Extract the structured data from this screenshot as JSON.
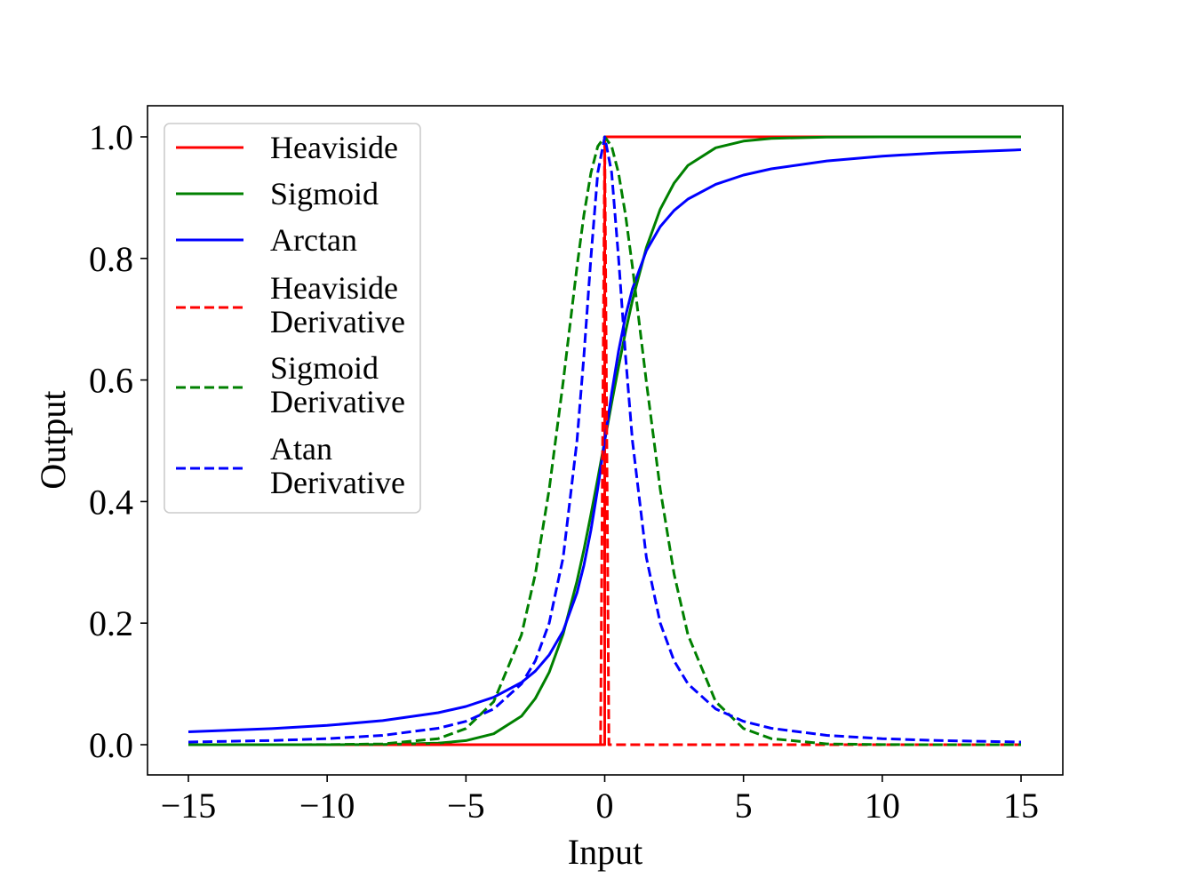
{
  "chart_data": {
    "type": "line",
    "title": "",
    "xlabel": "Input",
    "ylabel": "Output",
    "xlim": [
      -16.5,
      16.5
    ],
    "ylim": [
      -0.05,
      1.05
    ],
    "xticks": [
      -15,
      -10,
      -5,
      0,
      5,
      10,
      15
    ],
    "xtick_labels": [
      "−15",
      "−10",
      "−5",
      "0",
      "5",
      "10",
      "15"
    ],
    "yticks": [
      0.0,
      0.2,
      0.4,
      0.6,
      0.8,
      1.0
    ],
    "ytick_labels": [
      "0.0",
      "0.2",
      "0.4",
      "0.6",
      "0.8",
      "1.0"
    ],
    "grid": false,
    "legend_position": "upper-left",
    "series": [
      {
        "name": "Heaviside",
        "color": "#ff0000",
        "dash": "solid",
        "x": [
          -15,
          0,
          0,
          15
        ],
        "y": [
          0,
          0,
          1,
          1
        ]
      },
      {
        "name": "Sigmoid",
        "color": "#008000",
        "dash": "solid",
        "x": [
          -15,
          -12,
          -10,
          -8,
          -6,
          -5,
          -4,
          -3,
          -2.5,
          -2,
          -1.5,
          -1,
          -0.75,
          -0.5,
          -0.25,
          0,
          0.25,
          0.5,
          0.75,
          1,
          1.5,
          2,
          2.5,
          3,
          4,
          5,
          6,
          8,
          10,
          12,
          15
        ],
        "y": [
          0.0,
          0.0,
          5e-05,
          0.0003,
          0.0025,
          0.0067,
          0.018,
          0.047,
          0.076,
          0.119,
          0.182,
          0.269,
          0.3208,
          0.378,
          0.4378,
          0.5,
          0.5622,
          0.622,
          0.6792,
          0.731,
          0.818,
          0.881,
          0.924,
          0.953,
          0.982,
          0.993,
          0.9975,
          0.9997,
          0.99995,
          1.0,
          1.0
        ]
      },
      {
        "name": "Arctan",
        "color": "#0000ff",
        "dash": "solid",
        "x": [
          -15,
          -12,
          -10,
          -8,
          -6,
          -5,
          -4,
          -3,
          -2.5,
          -2,
          -1.5,
          -1,
          -0.75,
          -0.5,
          -0.25,
          0,
          0.25,
          0.5,
          0.75,
          1,
          1.5,
          2,
          2.5,
          3,
          4,
          5,
          6,
          8,
          10,
          12,
          15
        ],
        "y": [
          0.0212,
          0.0265,
          0.0317,
          0.0396,
          0.0526,
          0.0628,
          0.078,
          0.1024,
          0.1211,
          0.1476,
          0.1872,
          0.25,
          0.2952,
          0.3524,
          0.422,
          0.5,
          0.578,
          0.6476,
          0.7048,
          0.75,
          0.8128,
          0.8524,
          0.8789,
          0.8976,
          0.922,
          0.9372,
          0.9474,
          0.9604,
          0.9683,
          0.9735,
          0.9788
        ]
      },
      {
        "name": "Heaviside Derivative",
        "color": "#ff0000",
        "dash": "dashed",
        "x": [
          -15,
          -0.15,
          0,
          0.15,
          15
        ],
        "y": [
          0,
          0,
          1,
          0,
          0
        ]
      },
      {
        "name": "Sigmoid Derivative",
        "color": "#008000",
        "dash": "dashed",
        "x": [
          -15,
          -12,
          -10,
          -8,
          -6,
          -5,
          -4,
          -3,
          -2.5,
          -2,
          -1.5,
          -1,
          -0.75,
          -0.5,
          -0.25,
          0,
          0.25,
          0.5,
          0.75,
          1,
          1.5,
          2,
          2.5,
          3,
          4,
          5,
          6,
          8,
          10,
          12,
          15
        ],
        "y": [
          0,
          2e-05,
          0.0002,
          0.0013,
          0.0099,
          0.0266,
          0.0707,
          0.1807,
          0.2806,
          0.42,
          0.5965,
          0.7864,
          0.8716,
          0.94,
          0.9845,
          1,
          0.9845,
          0.94,
          0.8716,
          0.7864,
          0.5965,
          0.42,
          0.2806,
          0.1807,
          0.0707,
          0.0266,
          0.0099,
          0.0013,
          0.0002,
          2e-05,
          0
        ]
      },
      {
        "name": "Atan Derivative",
        "color": "#0000ff",
        "dash": "dashed",
        "x": [
          -15,
          -12,
          -10,
          -8,
          -6,
          -5,
          -4,
          -3,
          -2.5,
          -2,
          -1.5,
          -1,
          -0.75,
          -0.5,
          -0.25,
          0,
          0.25,
          0.5,
          0.75,
          1,
          1.5,
          2,
          2.5,
          3,
          4,
          5,
          6,
          8,
          10,
          12,
          15
        ],
        "y": [
          0.0044,
          0.0069,
          0.0099,
          0.0154,
          0.027,
          0.0385,
          0.0588,
          0.1,
          0.1379,
          0.2,
          0.3077,
          0.5,
          0.64,
          0.8,
          0.9412,
          1,
          0.9412,
          0.8,
          0.64,
          0.5,
          0.3077,
          0.2,
          0.1379,
          0.1,
          0.0588,
          0.0385,
          0.027,
          0.0154,
          0.0099,
          0.0069,
          0.0044
        ]
      }
    ]
  }
}
